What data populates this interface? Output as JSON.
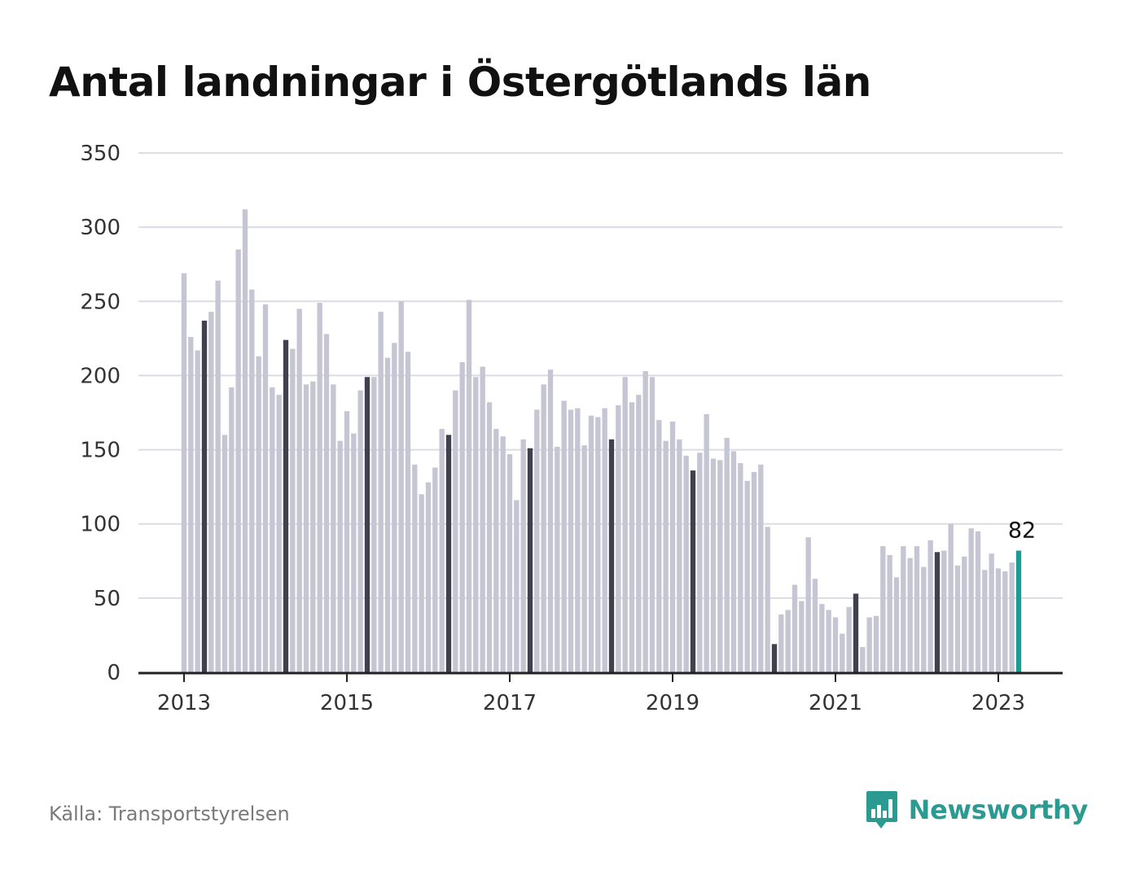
{
  "title": "Antal landningar i Östergötlands län",
  "source": "Källa: Transportstyrelsen",
  "brand": {
    "name": "Newsworthy",
    "icon": "newsworthy-bar-chart-icon",
    "color": "#2b9a91"
  },
  "colors": {
    "bar": "#c6c5d3",
    "april": "#40404f",
    "latest": "#1a9b94",
    "grid": "#dcdce2",
    "axis": "#222222"
  },
  "chart_data": {
    "type": "bar",
    "title": "Antal landningar i Östergötlands län",
    "xlabel": "",
    "ylabel": "",
    "ylim": [
      0,
      350
    ],
    "yticks": [
      0,
      50,
      100,
      150,
      200,
      250,
      300,
      350
    ],
    "xticks": [
      "2013",
      "2015",
      "2017",
      "2019",
      "2021",
      "2023"
    ],
    "start": "2013-01",
    "end": "2023-04",
    "grid": true,
    "highlight": "April of each year (dark bars); latest month in teal",
    "annotation": {
      "month": "2023-04",
      "text": "82"
    },
    "values": [
      269,
      226,
      217,
      237,
      243,
      264,
      160,
      192,
      285,
      312,
      258,
      213,
      248,
      192,
      187,
      224,
      218,
      245,
      194,
      196,
      249,
      228,
      194,
      156,
      176,
      161,
      190,
      199,
      199,
      243,
      212,
      222,
      250,
      216,
      140,
      120,
      128,
      138,
      164,
      160,
      190,
      209,
      251,
      199,
      206,
      182,
      164,
      159,
      147,
      116,
      157,
      151,
      177,
      194,
      204,
      152,
      183,
      177,
      178,
      153,
      173,
      172,
      178,
      157,
      180,
      199,
      182,
      187,
      203,
      199,
      170,
      156,
      169,
      157,
      146,
      136,
      148,
      174,
      144,
      143,
      158,
      149,
      141,
      129,
      135,
      140,
      98,
      19,
      39,
      42,
      59,
      48,
      91,
      63,
      46,
      42,
      37,
      26,
      44,
      53,
      17,
      37,
      38,
      85,
      79,
      64,
      85,
      77,
      85,
      71,
      89,
      81,
      82,
      100,
      72,
      78,
      97,
      95,
      69,
      80,
      70,
      68,
      74,
      82
    ]
  }
}
